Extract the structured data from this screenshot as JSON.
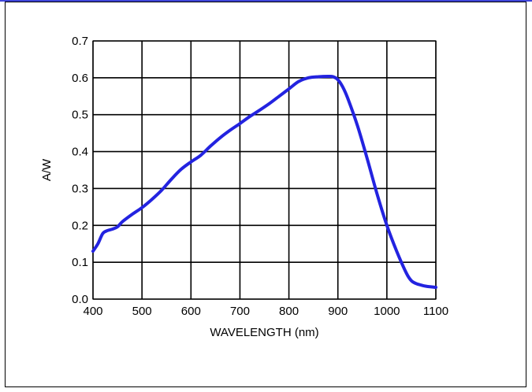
{
  "chart_data": {
    "type": "line",
    "title": "",
    "xlabel": "WAVELENGTH (nm)",
    "ylabel": "A/W",
    "xlim": [
      400,
      1100
    ],
    "ylim": [
      0,
      0.7
    ],
    "x_ticks": [
      400,
      500,
      600,
      700,
      800,
      900,
      1000,
      1100
    ],
    "y_ticks": [
      0.0,
      0.1,
      0.2,
      0.3,
      0.4,
      0.5,
      0.6,
      0.7
    ],
    "x_tick_labels": [
      "400",
      "500",
      "600",
      "700",
      "800",
      "900",
      "1000",
      "1100"
    ],
    "y_tick_labels": [
      "0.0",
      "0.1",
      "0.2",
      "0.3",
      "0.4",
      "0.5",
      "0.6",
      "0.7"
    ],
    "grid": true,
    "line_color": "#2323e0",
    "series": [
      {
        "x": [
          400,
          410,
          420,
          430,
          440,
          450,
          460,
          480,
          500,
          520,
          540,
          560,
          580,
          600,
          620,
          640,
          660,
          680,
          700,
          720,
          740,
          760,
          780,
          800,
          820,
          840,
          860,
          880,
          890,
          900,
          910,
          920,
          940,
          960,
          980,
          1000,
          1020,
          1040,
          1050,
          1060,
          1070,
          1080,
          1100
        ],
        "y": [
          0.13,
          0.15,
          0.178,
          0.186,
          0.19,
          0.196,
          0.21,
          0.23,
          0.248,
          0.27,
          0.295,
          0.325,
          0.352,
          0.372,
          0.39,
          0.415,
          0.438,
          0.458,
          0.476,
          0.495,
          0.512,
          0.53,
          0.55,
          0.57,
          0.59,
          0.6,
          0.603,
          0.604,
          0.603,
          0.595,
          0.575,
          0.545,
          0.47,
          0.38,
          0.285,
          0.2,
          0.13,
          0.07,
          0.05,
          0.042,
          0.038,
          0.035,
          0.032
        ]
      }
    ]
  }
}
